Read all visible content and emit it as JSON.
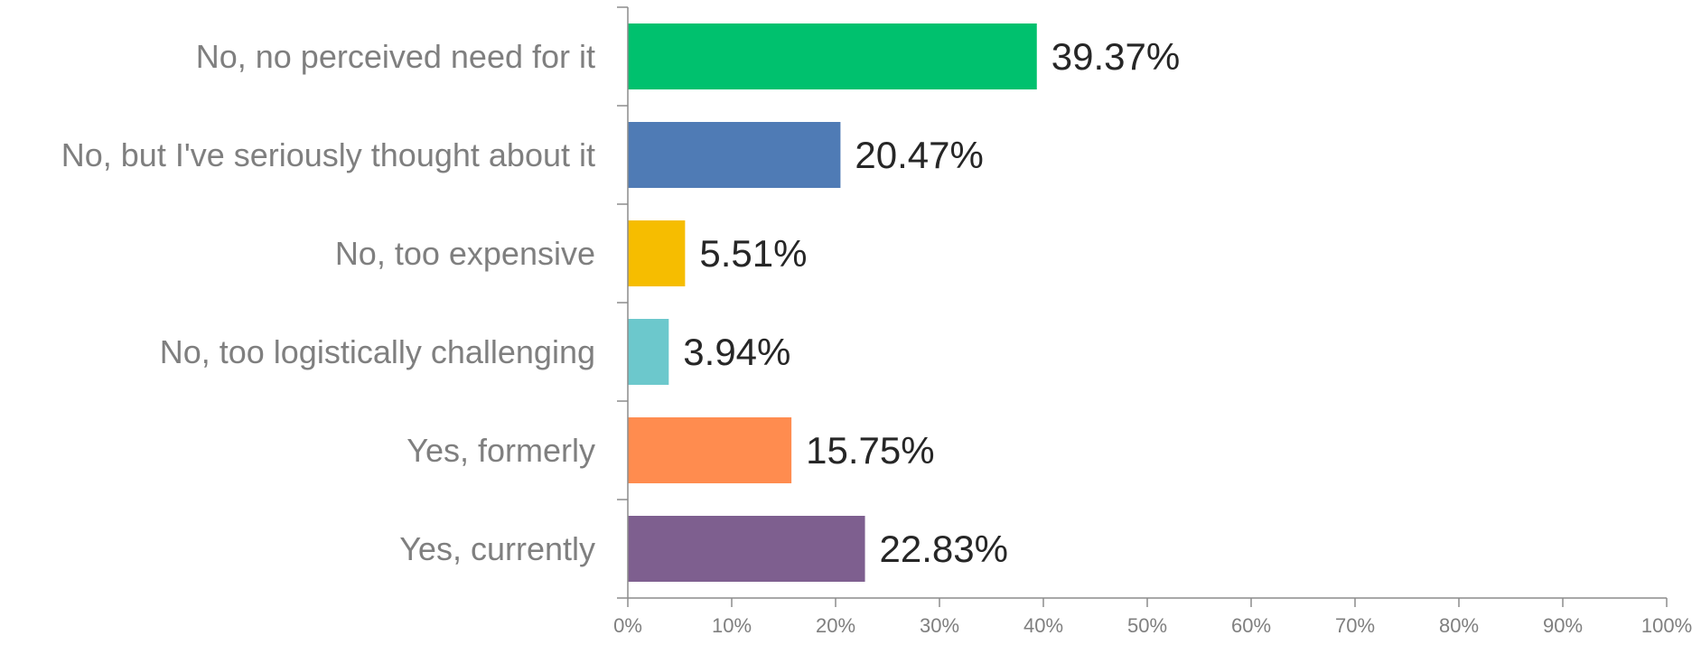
{
  "chart_data": {
    "type": "bar",
    "orientation": "horizontal",
    "categories": [
      "No, no perceived need for it",
      "No, but I've seriously thought about it",
      "No, too expensive",
      "No, too logistically challenging",
      "Yes, formerly",
      "Yes, currently"
    ],
    "values": [
      39.37,
      20.47,
      5.51,
      3.94,
      15.75,
      22.83
    ],
    "value_labels": [
      "39.37%",
      "20.47%",
      "5.51%",
      "3.94%",
      "15.75%",
      "22.83%"
    ],
    "colors": [
      "#00c16e",
      "#4f7bb5",
      "#f6bd00",
      "#6cc8cc",
      "#ff8c4f",
      "#7e5f8f"
    ],
    "xlim": [
      0,
      100
    ],
    "x_ticks": [
      0,
      10,
      20,
      30,
      40,
      50,
      60,
      70,
      80,
      90,
      100
    ],
    "x_tick_labels": [
      "0%",
      "10%",
      "20%",
      "30%",
      "40%",
      "50%",
      "60%",
      "70%",
      "80%",
      "90%",
      "100%"
    ],
    "title": "",
    "xlabel": "",
    "ylabel": "",
    "grid": false,
    "legend": "none"
  }
}
